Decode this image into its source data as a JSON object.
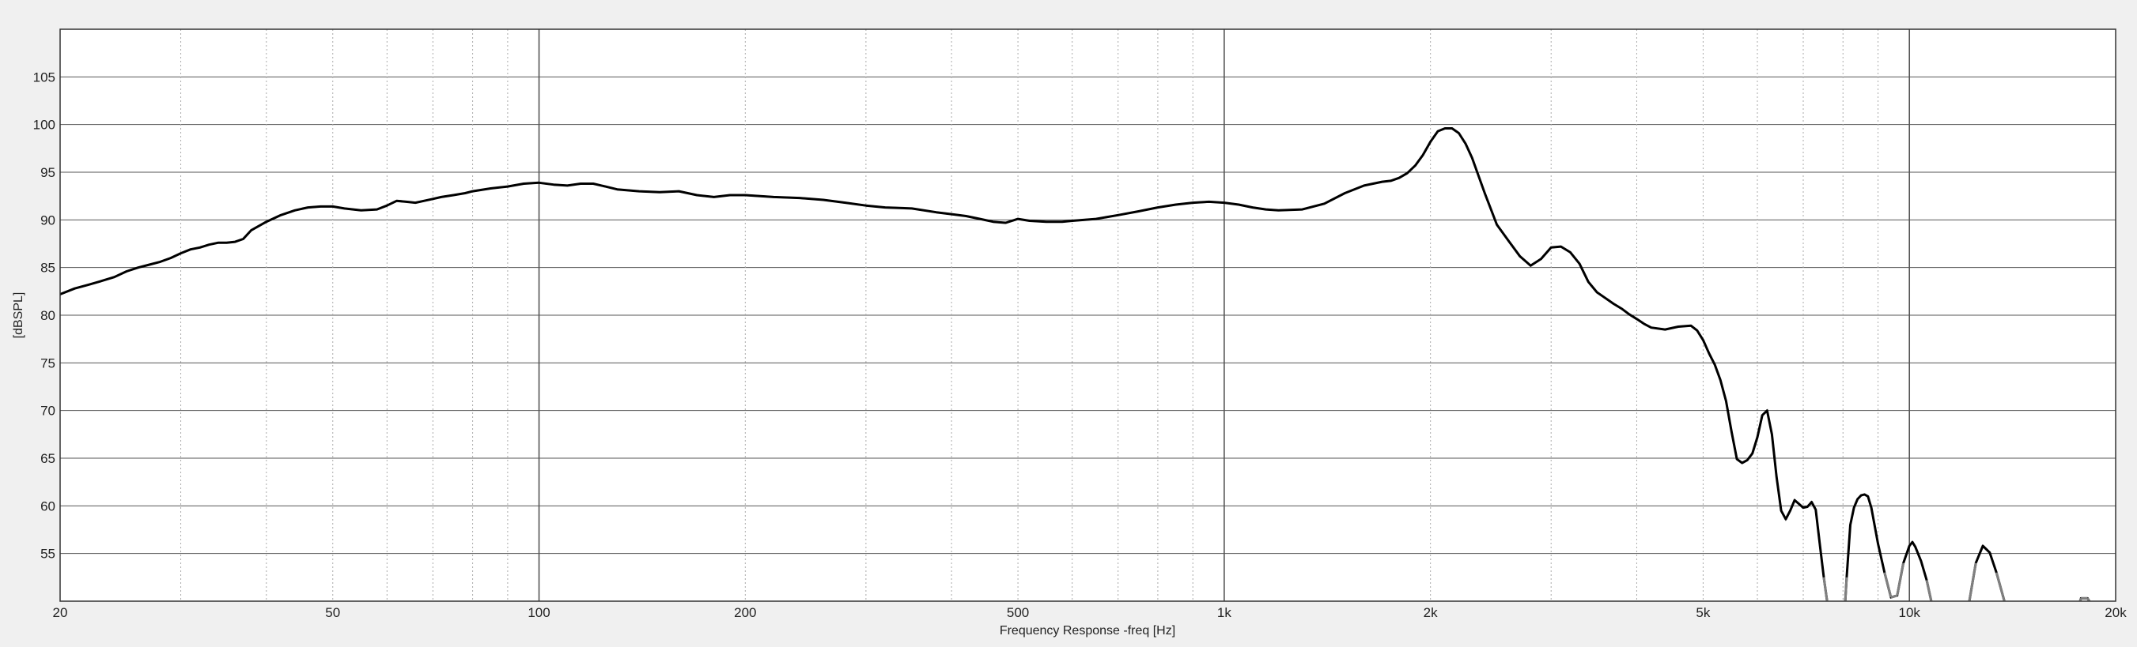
{
  "chart_data": {
    "type": "line",
    "title": "",
    "xlabel": "Frequency Response -freq [Hz]",
    "ylabel": "[dBSPL]",
    "x_scale": "log",
    "xlim": [
      20,
      20000
    ],
    "ylim": [
      50,
      110
    ],
    "grid": true,
    "x_ticks": [
      {
        "value": 20,
        "label": "20"
      },
      {
        "value": 50,
        "label": "50"
      },
      {
        "value": 100,
        "label": "100"
      },
      {
        "value": 200,
        "label": "200"
      },
      {
        "value": 500,
        "label": "500"
      },
      {
        "value": 1000,
        "label": "1k"
      },
      {
        "value": 2000,
        "label": "2k"
      },
      {
        "value": 5000,
        "label": "5k"
      },
      {
        "value": 10000,
        "label": "10k"
      },
      {
        "value": 20000,
        "label": "20k"
      }
    ],
    "y_ticks": [
      55,
      60,
      65,
      70,
      75,
      80,
      85,
      90,
      95,
      100,
      105
    ],
    "colors": {
      "background": "#f0f0f0",
      "plot_background": "#ffffff",
      "curve": "#000000",
      "curve_clipped": "#808080",
      "major_grid": "#555555",
      "minor_grid": "#aaaaaa"
    },
    "series": [
      {
        "values": [
          [
            20,
            82.2
          ],
          [
            21,
            82.8
          ],
          [
            22,
            83.2
          ],
          [
            23,
            83.6
          ],
          [
            24,
            84.0
          ],
          [
            25,
            84.6
          ],
          [
            26,
            85.0
          ],
          [
            27,
            85.3
          ],
          [
            28,
            85.6
          ],
          [
            29,
            86.0
          ],
          [
            30,
            86.5
          ],
          [
            31,
            86.9
          ],
          [
            32,
            87.1
          ],
          [
            33,
            87.4
          ],
          [
            34,
            87.6
          ],
          [
            35,
            87.6
          ],
          [
            36,
            87.7
          ],
          [
            37,
            88.0
          ],
          [
            38,
            88.9
          ],
          [
            40,
            89.8
          ],
          [
            42,
            90.5
          ],
          [
            44,
            91.0
          ],
          [
            46,
            91.3
          ],
          [
            48,
            91.4
          ],
          [
            50,
            91.4
          ],
          [
            52,
            91.2
          ],
          [
            55,
            91.0
          ],
          [
            58,
            91.1
          ],
          [
            60,
            91.5
          ],
          [
            62,
            92.0
          ],
          [
            64,
            91.9
          ],
          [
            66,
            91.8
          ],
          [
            68,
            92.0
          ],
          [
            70,
            92.2
          ],
          [
            72,
            92.4
          ],
          [
            75,
            92.6
          ],
          [
            78,
            92.8
          ],
          [
            80,
            93.0
          ],
          [
            85,
            93.3
          ],
          [
            90,
            93.5
          ],
          [
            95,
            93.8
          ],
          [
            100,
            93.9
          ],
          [
            105,
            93.7
          ],
          [
            110,
            93.6
          ],
          [
            115,
            93.8
          ],
          [
            120,
            93.8
          ],
          [
            125,
            93.5
          ],
          [
            130,
            93.2
          ],
          [
            140,
            93.0
          ],
          [
            150,
            92.9
          ],
          [
            160,
            93.0
          ],
          [
            170,
            92.6
          ],
          [
            180,
            92.4
          ],
          [
            190,
            92.6
          ],
          [
            200,
            92.6
          ],
          [
            220,
            92.4
          ],
          [
            240,
            92.3
          ],
          [
            260,
            92.1
          ],
          [
            280,
            91.8
          ],
          [
            300,
            91.5
          ],
          [
            320,
            91.3
          ],
          [
            350,
            91.2
          ],
          [
            380,
            90.8
          ],
          [
            400,
            90.6
          ],
          [
            420,
            90.4
          ],
          [
            440,
            90.1
          ],
          [
            460,
            89.8
          ],
          [
            480,
            89.7
          ],
          [
            500,
            90.1
          ],
          [
            520,
            89.9
          ],
          [
            550,
            89.8
          ],
          [
            580,
            89.8
          ],
          [
            600,
            89.9
          ],
          [
            650,
            90.1
          ],
          [
            700,
            90.5
          ],
          [
            750,
            90.9
          ],
          [
            800,
            91.3
          ],
          [
            850,
            91.6
          ],
          [
            900,
            91.8
          ],
          [
            950,
            91.9
          ],
          [
            1000,
            91.8
          ],
          [
            1050,
            91.6
          ],
          [
            1100,
            91.3
          ],
          [
            1150,
            91.1
          ],
          [
            1200,
            91.0
          ],
          [
            1300,
            91.1
          ],
          [
            1400,
            91.7
          ],
          [
            1500,
            92.8
          ],
          [
            1600,
            93.6
          ],
          [
            1700,
            94.0
          ],
          [
            1750,
            94.1
          ],
          [
            1800,
            94.4
          ],
          [
            1850,
            94.9
          ],
          [
            1900,
            95.7
          ],
          [
            1950,
            96.8
          ],
          [
            2000,
            98.2
          ],
          [
            2050,
            99.3
          ],
          [
            2100,
            99.6
          ],
          [
            2150,
            99.6
          ],
          [
            2200,
            99.1
          ],
          [
            2250,
            98.0
          ],
          [
            2300,
            96.5
          ],
          [
            2400,
            92.8
          ],
          [
            2500,
            89.5
          ],
          [
            2600,
            87.8
          ],
          [
            2700,
            86.2
          ],
          [
            2800,
            85.2
          ],
          [
            2900,
            85.9
          ],
          [
            3000,
            87.1
          ],
          [
            3100,
            87.2
          ],
          [
            3200,
            86.6
          ],
          [
            3300,
            85.4
          ],
          [
            3400,
            83.5
          ],
          [
            3500,
            82.4
          ],
          [
            3600,
            81.8
          ],
          [
            3700,
            81.2
          ],
          [
            3800,
            80.7
          ],
          [
            3900,
            80.1
          ],
          [
            4000,
            79.6
          ],
          [
            4100,
            79.1
          ],
          [
            4200,
            78.7
          ],
          [
            4400,
            78.5
          ],
          [
            4600,
            78.8
          ],
          [
            4800,
            78.9
          ],
          [
            4900,
            78.4
          ],
          [
            5000,
            77.4
          ],
          [
            5100,
            76.0
          ],
          [
            5200,
            74.8
          ],
          [
            5300,
            73.2
          ],
          [
            5400,
            71.0
          ],
          [
            5500,
            67.8
          ],
          [
            5600,
            64.9
          ],
          [
            5700,
            64.5
          ],
          [
            5800,
            64.8
          ],
          [
            5900,
            65.5
          ],
          [
            6000,
            67.2
          ],
          [
            6100,
            69.5
          ],
          [
            6200,
            70.0
          ],
          [
            6300,
            67.5
          ],
          [
            6400,
            63.0
          ],
          [
            6500,
            59.5
          ],
          [
            6600,
            58.6
          ],
          [
            6700,
            59.5
          ],
          [
            6800,
            60.6
          ],
          [
            6900,
            60.2
          ],
          [
            7000,
            59.8
          ],
          [
            7100,
            59.9
          ],
          [
            7200,
            60.4
          ],
          [
            7300,
            59.6
          ],
          [
            7400,
            56.0
          ],
          [
            7500,
            52.5
          ],
          [
            7600,
            49.5
          ],
          [
            8000,
            46.0
          ],
          [
            8100,
            52.5
          ],
          [
            8200,
            58.0
          ],
          [
            8300,
            59.8
          ],
          [
            8400,
            60.7
          ],
          [
            8500,
            61.1
          ],
          [
            8600,
            61.2
          ],
          [
            8700,
            61.0
          ],
          [
            8800,
            59.8
          ],
          [
            9000,
            56.0
          ],
          [
            9200,
            53.0
          ],
          [
            9400,
            50.4
          ],
          [
            9600,
            50.6
          ],
          [
            9800,
            54.0
          ],
          [
            10000,
            55.8
          ],
          [
            10100,
            56.2
          ],
          [
            10200,
            55.7
          ],
          [
            10400,
            54.2
          ],
          [
            10600,
            52.2
          ],
          [
            10800,
            49.5
          ],
          [
            11800,
            45.0
          ],
          [
            12200,
            49.5
          ],
          [
            12500,
            54.0
          ],
          [
            12800,
            55.8
          ],
          [
            13100,
            55.1
          ],
          [
            13400,
            53.0
          ],
          [
            13700,
            50.5
          ],
          [
            14000,
            48.0
          ],
          [
            17000,
            46.0
          ],
          [
            17800,
            50.3
          ],
          [
            18200,
            50.3
          ],
          [
            18500,
            49.5
          ],
          [
            20000,
            45.0
          ]
        ]
      }
    ]
  }
}
